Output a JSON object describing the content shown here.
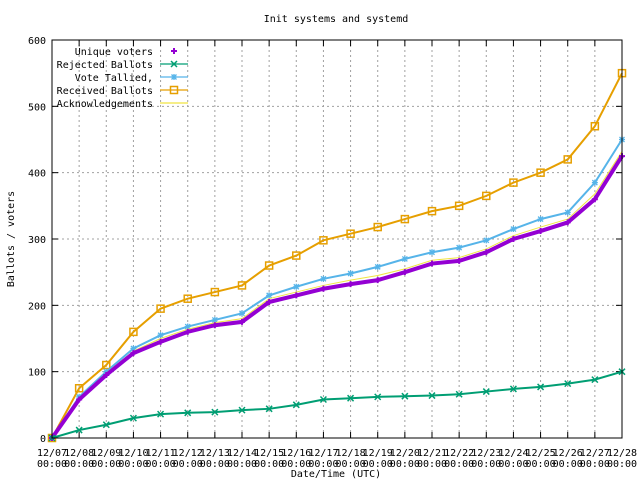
{
  "chart_data": {
    "type": "line",
    "title": "Init systems and systemd",
    "xlabel": "Date/Time (UTC)",
    "ylabel": "Ballots / voters",
    "ylim": [
      0,
      600
    ],
    "yticks": [
      0,
      100,
      200,
      300,
      400,
      500,
      600
    ],
    "grid": true,
    "legend_position": "top-left",
    "x": [
      "12/07",
      "12/08",
      "12/09",
      "12/10",
      "12/11",
      "12/12",
      "12/13",
      "12/14",
      "12/15",
      "12/16",
      "12/17",
      "12/18",
      "12/19",
      "12/20",
      "12/21",
      "12/22",
      "12/23",
      "12/24",
      "12/25",
      "12/26",
      "12/27",
      "12/28"
    ],
    "xtick_time": "00:00",
    "series": [
      {
        "name": "Unique voters",
        "color": "#9400d3",
        "marker": "+",
        "values": [
          0,
          58,
          95,
          128,
          145,
          160,
          170,
          175,
          205,
          215,
          225,
          232,
          238,
          250,
          263,
          267,
          280,
          300,
          312,
          325,
          360,
          425
        ]
      },
      {
        "name": "Rejected Ballots",
        "color": "#009e73",
        "marker": "x",
        "values": [
          0,
          12,
          20,
          30,
          36,
          38,
          39,
          42,
          44,
          50,
          58,
          60,
          62,
          63,
          64,
          66,
          70,
          74,
          77,
          82,
          88,
          100
        ]
      },
      {
        "name": "Vote Tallied,",
        "color": "#56b4e9",
        "marker": "*",
        "values": [
          0,
          62,
          100,
          135,
          155,
          168,
          178,
          188,
          215,
          228,
          240,
          248,
          258,
          270,
          280,
          287,
          298,
          315,
          330,
          340,
          385,
          450
        ]
      },
      {
        "name": "Received Ballots",
        "color": "#e69f00",
        "marker": "square",
        "values": [
          0,
          75,
          110,
          160,
          195,
          210,
          220,
          230,
          260,
          275,
          298,
          308,
          318,
          330,
          342,
          350,
          365,
          385,
          400,
          420,
          470,
          550
        ]
      },
      {
        "name": "Acknowledgements",
        "color": "#f0e442",
        "marker": "none",
        "values": [
          0,
          60,
          98,
          131,
          150,
          164,
          174,
          180,
          210,
          220,
          230,
          238,
          245,
          255,
          268,
          272,
          285,
          305,
          318,
          330,
          368,
          432
        ]
      }
    ]
  }
}
